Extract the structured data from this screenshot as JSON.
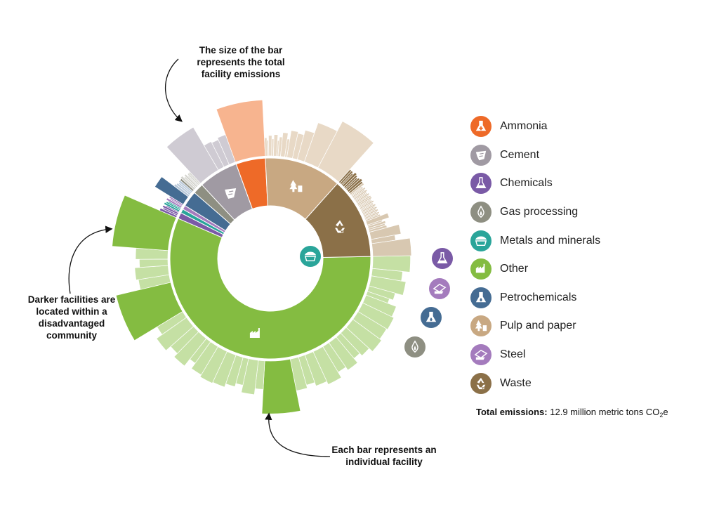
{
  "chart_data": {
    "type": "sunburst",
    "categories": [
      {
        "name": "Other",
        "color": "#84bc41",
        "bar_color": "#c5e0a4",
        "icon": "factory-icon",
        "facilities": [
          3.4,
          2.1,
          2.9,
          1.6,
          1.1,
          2.4,
          2.8,
          2.6,
          3.0,
          2.2,
          1.7,
          2.6,
          2.0,
          3.1,
          2.5,
          1.9,
          2.4,
          7.2,
          1.8,
          2.8,
          1.6,
          2.1,
          2.7,
          2.9,
          2.5,
          1.5,
          2.9,
          2.1,
          3.2,
          2.0,
          8.9,
          2.2,
          2.6,
          1.8,
          2.4,
          9.6
        ],
        "highlight_bars": [
          9.6,
          8.9,
          7.2
        ]
      },
      {
        "name": "Chemicals",
        "color": "#7a5aa6",
        "bar_color": "#c4b5d9",
        "icon": "flask-icon",
        "facilities": [
          0.6,
          0.4,
          0.5,
          0.3
        ]
      },
      {
        "name": "Metals and minerals",
        "color": "#2aa59a",
        "bar_color": "#a8d9d3",
        "icon": "minecart-icon",
        "facilities": [
          0.5,
          0.4,
          0.3
        ]
      },
      {
        "name": "Steel",
        "color": "#a47bbd",
        "bar_color": "#d6c3e2",
        "icon": "steel-icon",
        "facilities": [
          0.5,
          0.3,
          0.4
        ]
      },
      {
        "name": "Petrochemicals",
        "color": "#456c93",
        "bar_color": "#b8c8d9",
        "icon": "flask-drop-icon",
        "facilities": [
          2.6,
          0.6,
          0.5,
          0.4,
          0.5
        ]
      },
      {
        "name": "Gas processing",
        "color": "#8e8f82",
        "bar_color": "#d3d3cd",
        "icon": "drop-icon",
        "facilities": [
          0.5,
          0.6,
          0.4,
          0.5,
          0.3,
          0.4,
          0.4
        ]
      },
      {
        "name": "Cement",
        "color": "#a09aa3",
        "bar_color": "#cfcbd3",
        "icon": "cement-icon",
        "facilities": [
          6.3,
          1.8,
          1.6,
          1.9
        ]
      },
      {
        "name": "Ammonia",
        "color": "#ee6a28",
        "bar_color": "#f7b48f",
        "icon": "flask-plus-icon",
        "facilities": [
          8.6
        ]
      },
      {
        "name": "Pulp and paper",
        "color": "#c8a882",
        "bar_color": "#e8d9c6",
        "icon": "tree-icon",
        "facilities": [
          0.6,
          0.4,
          0.8,
          0.5,
          0.9,
          0.4,
          0.7,
          1.2,
          0.6,
          1.6,
          1.4,
          2.1,
          4.2,
          7.1
        ]
      },
      {
        "name": "Waste",
        "color": "#8b7048",
        "bar_color": "#d8c8b1",
        "dark_bar_color": "#8b7048",
        "icon": "recycle-icon",
        "facilities": [
          0.5,
          0.5,
          0.4,
          0.6,
          0.5,
          0.4,
          0.5,
          0.6,
          0.5,
          0.5,
          0.3,
          0.3,
          0.4,
          0.3,
          0.4,
          0.3,
          0.3,
          0.4,
          0.3,
          0.4,
          0.4,
          0.3,
          0.3,
          0.4,
          0.3,
          0.3,
          0.4,
          0.3,
          0.4,
          0.3,
          0.4,
          0.3,
          0.4,
          0.3,
          0.4,
          1.1,
          0.4,
          0.6,
          0.5,
          0.6,
          2.1,
          1.2,
          3.6
        ],
        "dark_facility_count": 9
      }
    ]
  },
  "annotations": {
    "top": [
      "The size of the bar",
      "represents the total",
      "facility emissions"
    ],
    "left": [
      "Darker facilities are",
      "located within a",
      "disadvantaged",
      "community"
    ],
    "bottom": [
      "Each bar represents an",
      "individual facility"
    ]
  },
  "legend": {
    "items": [
      {
        "label": "Ammonia",
        "color": "#ee6a28",
        "icon": "flask-plus-icon"
      },
      {
        "label": "Cement",
        "color": "#a09aa3",
        "icon": "cement-icon"
      },
      {
        "label": "Chemicals",
        "color": "#7a5aa6",
        "icon": "flask-icon"
      },
      {
        "label": "Gas processing",
        "color": "#8e8f82",
        "icon": "drop-icon"
      },
      {
        "label": "Metals and minerals",
        "color": "#2aa59a",
        "icon": "minecart-icon"
      },
      {
        "label": "Other",
        "color": "#84bc41",
        "icon": "factory-icon"
      },
      {
        "label": "Petrochemicals",
        "color": "#456c93",
        "icon": "flask-drop-icon"
      },
      {
        "label": "Pulp and paper",
        "color": "#c8a882",
        "icon": "tree-icon"
      },
      {
        "label": "Steel",
        "color": "#a47bbd",
        "icon": "steel-icon"
      },
      {
        "label": "Waste",
        "color": "#8b7048",
        "icon": "recycle-icon"
      }
    ]
  },
  "total": {
    "label": "Total emissions:",
    "value": "12.9 million metric tons CO",
    "subscript": "2",
    "suffix": "e"
  }
}
